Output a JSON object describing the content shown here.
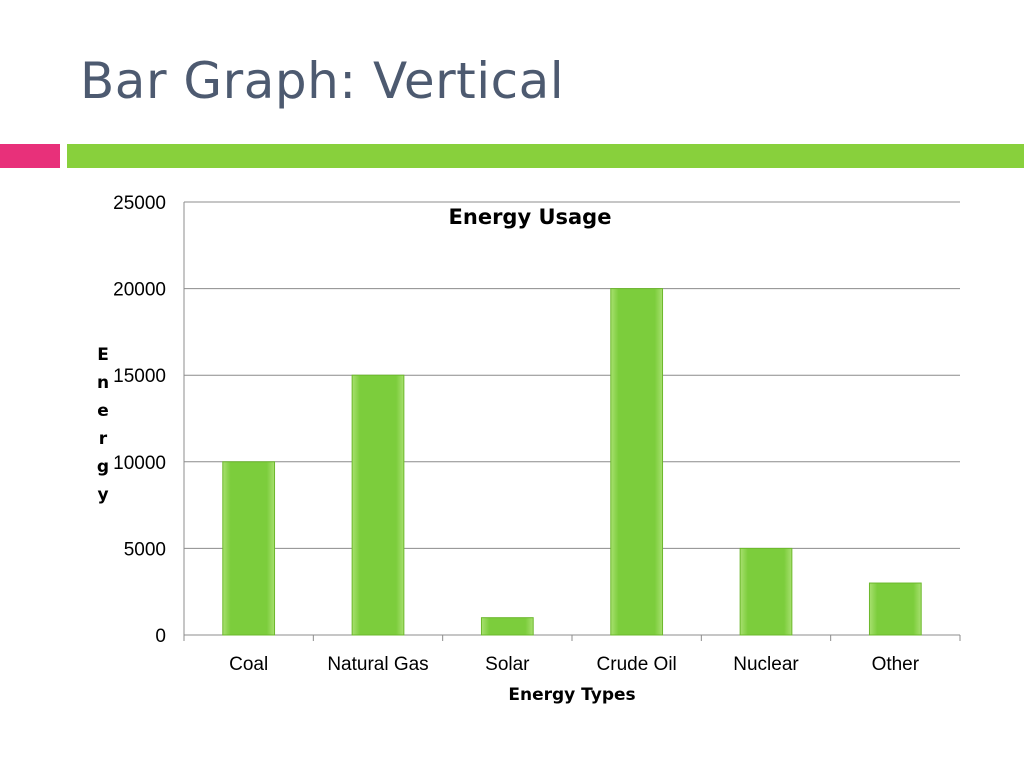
{
  "slide": {
    "title": "Bar Graph: Vertical",
    "accent_colors": {
      "pink": "#e8307a",
      "green": "#88d03c"
    }
  },
  "chart_data": {
    "type": "bar",
    "title": "Energy Usage",
    "xlabel": "Energy Types",
    "ylabel": "Energy",
    "categories": [
      "Coal",
      "Natural Gas",
      "Solar",
      "Crude Oil",
      "Nuclear",
      "Other"
    ],
    "values": [
      10000,
      15000,
      1000,
      20000,
      5000,
      3000
    ],
    "ylim": [
      0,
      25000
    ],
    "yticks": [
      0,
      5000,
      10000,
      15000,
      20000,
      25000
    ],
    "grid": true,
    "legend": "none",
    "bar_color": "#7ccd3c"
  }
}
